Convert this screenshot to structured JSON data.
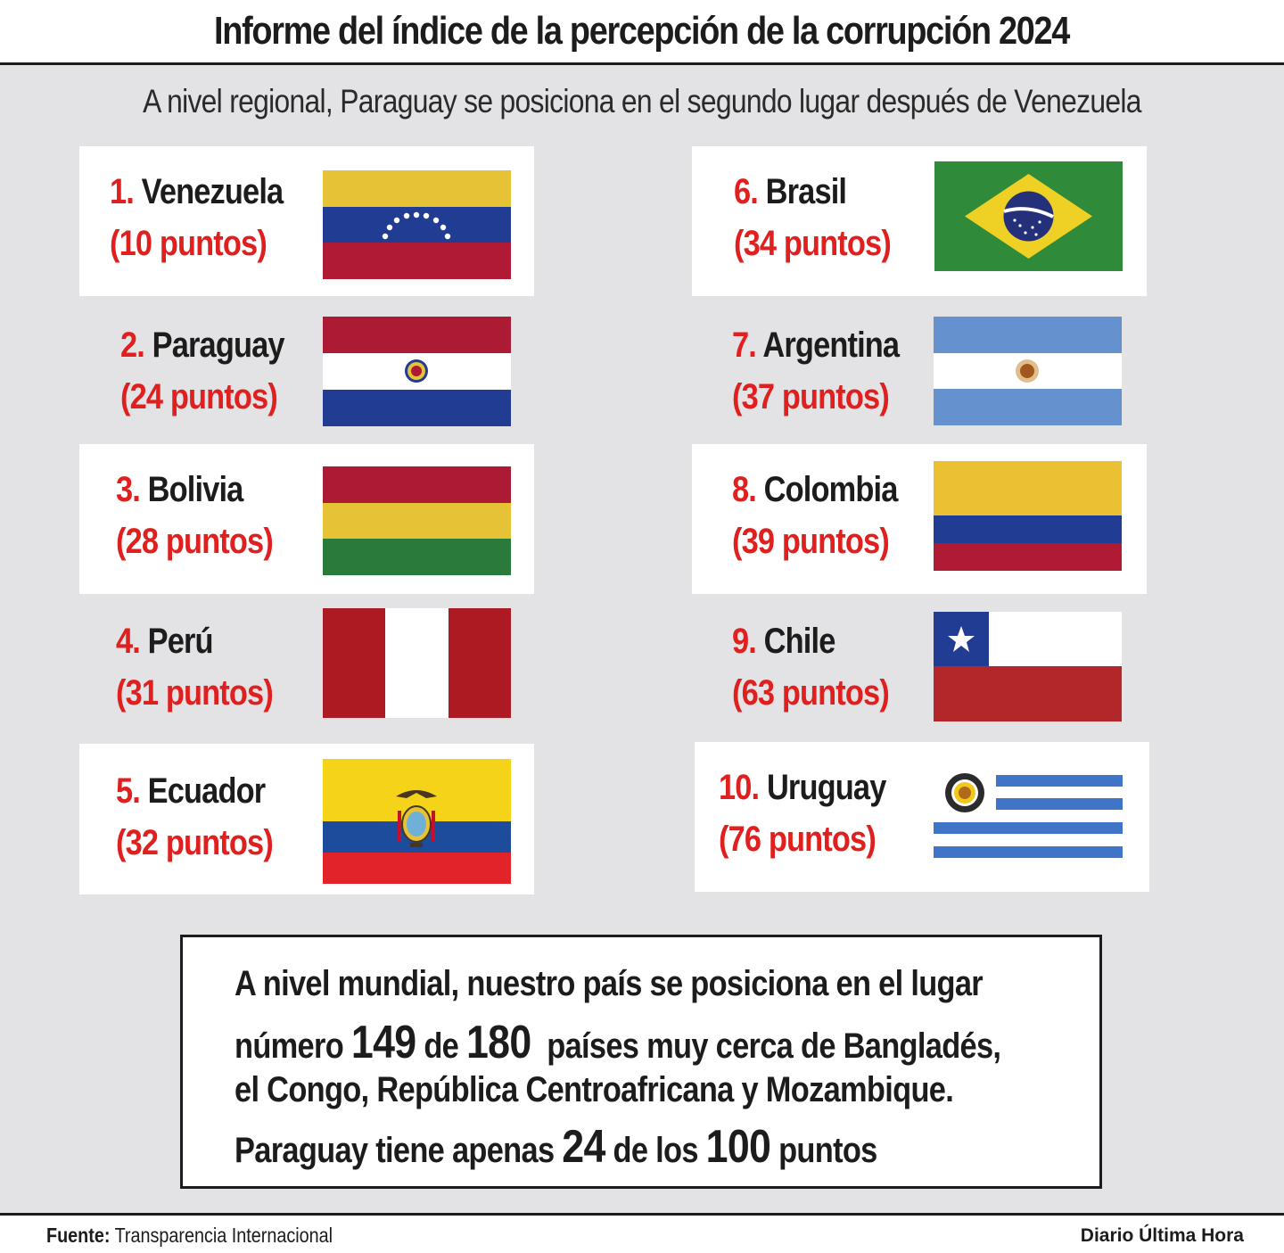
{
  "title": "Informe del índice de la percepción de la corrupción 2024",
  "subtitle": "A nivel regional, Paraguay se posiciona en el segundo lugar después de Venezuela",
  "countries": [
    {
      "rank": "1.",
      "name": "Venezuela",
      "points": "(10 puntos)",
      "score": 10,
      "flag_icon": "venezuela-flag-icon"
    },
    {
      "rank": "2.",
      "name": "Paraguay",
      "points": "(24 puntos)",
      "score": 24,
      "flag_icon": "paraguay-flag-icon"
    },
    {
      "rank": "3.",
      "name": "Bolivia",
      "points": "(28 puntos)",
      "score": 28,
      "flag_icon": "bolivia-flag-icon"
    },
    {
      "rank": "4.",
      "name": "Perú",
      "points": "(31 puntos)",
      "score": 31,
      "flag_icon": "peru-flag-icon"
    },
    {
      "rank": "5.",
      "name": "Ecuador",
      "points": "(32 puntos)",
      "score": 32,
      "flag_icon": "ecuador-flag-icon"
    },
    {
      "rank": "6.",
      "name": "Brasil",
      "points": "(34 puntos)",
      "score": 34,
      "flag_icon": "brasil-flag-icon"
    },
    {
      "rank": "7.",
      "name": "Argentina",
      "points": "(37 puntos)",
      "score": 37,
      "flag_icon": "argentina-flag-icon"
    },
    {
      "rank": "8.",
      "name": "Colombia",
      "points": "(39 puntos)",
      "score": 39,
      "flag_icon": "colombia-flag-icon"
    },
    {
      "rank": "9.",
      "name": "Chile",
      "points": "(63 puntos)",
      "score": 63,
      "flag_icon": "chile-flag-icon"
    },
    {
      "rank": "10.",
      "name": "Uruguay",
      "points": "(76 puntos)",
      "score": 76,
      "flag_icon": "uruguay-flag-icon"
    }
  ],
  "world": {
    "line1": "A nivel mundial, nuestro país se posiciona en el lugar",
    "line2_a": "número ",
    "line2_num1": "149",
    "line2_b": " de ",
    "line2_num2": "180",
    "line2_c": "  países muy cerca de Bangladés,",
    "line3": "el Congo, República Centroafricana y Mozambique.",
    "line4_a": "Paraguay tiene apenas ",
    "line4_num1": "24",
    "line4_b": " de los ",
    "line4_num2": "100",
    "line4_c": " puntos"
  },
  "footer": {
    "source_label": "Fuente:",
    "source_value": " Transparencia Internacional",
    "publisher": "Diario Última Hora"
  },
  "colors": {
    "accent_red": "#e0201f",
    "panel_bg": "#e3e3e5",
    "text_dark": "#1c1c1c"
  }
}
